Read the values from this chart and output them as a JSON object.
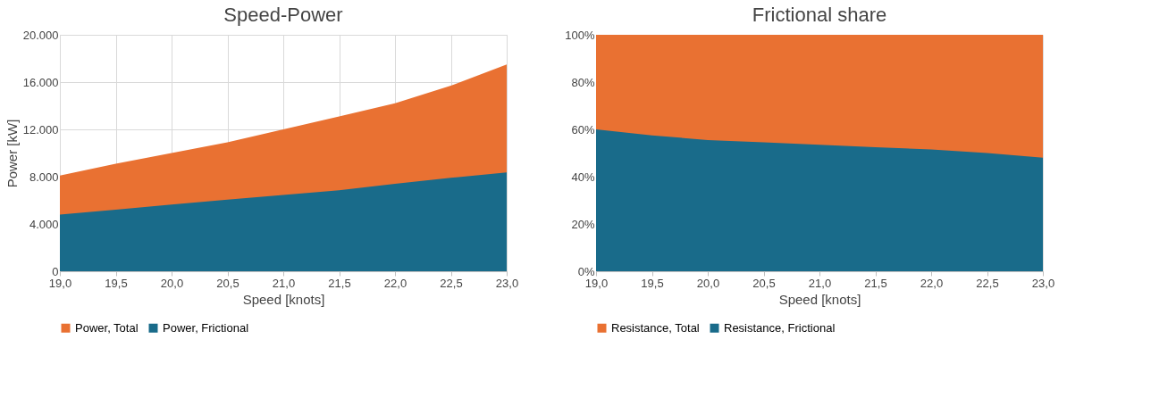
{
  "chart_data": [
    {
      "type": "area",
      "title": "Speed-Power",
      "xlabel": "Speed [knots]",
      "ylabel": "Power [kW]",
      "x": [
        19,
        19.5,
        20,
        20.5,
        21,
        21.5,
        22,
        22.5,
        23
      ],
      "series": [
        {
          "name": "Power, Total",
          "color": "#e97132",
          "values": [
            8100,
            9100,
            10000,
            10900,
            12000,
            13100,
            14200,
            15700,
            17500
          ]
        },
        {
          "name": "Power, Frictional",
          "color": "#196b8a",
          "values": [
            4800,
            5200,
            5650,
            6050,
            6450,
            6850,
            7400,
            7900,
            8350
          ]
        }
      ],
      "xlim": [
        19,
        23
      ],
      "xticks": [
        {
          "value": 19,
          "label": "19,0"
        },
        {
          "value": 19.5,
          "label": "19,5"
        },
        {
          "value": 20,
          "label": "20,0"
        },
        {
          "value": 20.5,
          "label": "20,5"
        },
        {
          "value": 21,
          "label": "21,0"
        },
        {
          "value": 21.5,
          "label": "21,5"
        },
        {
          "value": 22,
          "label": "22,0"
        },
        {
          "value": 22.5,
          "label": "22,5"
        },
        {
          "value": 23,
          "label": "23,0"
        }
      ],
      "ylim": [
        0,
        20000
      ],
      "yticks": [
        0,
        {
          "value": 4000,
          "label": "4.000"
        },
        {
          "value": 8000,
          "label": "8.000"
        },
        {
          "value": 12000,
          "label": "12.000"
        },
        {
          "value": 16000,
          "label": "16.000"
        },
        {
          "value": 20000,
          "label": "20.000"
        }
      ],
      "grid": true,
      "legend": "bottom"
    },
    {
      "type": "area",
      "title": "Frictional share",
      "xlabel": "Speed [knots]",
      "x": [
        19,
        19.5,
        20,
        20.5,
        21,
        21.5,
        22,
        22.5,
        23
      ],
      "series": [
        {
          "name": "Resistance, Total",
          "color": "#e97132",
          "values": [
            100,
            100,
            100,
            100,
            100,
            100,
            100,
            100,
            100
          ]
        },
        {
          "name": "Resistance, Frictional",
          "color": "#196b8a",
          "values": [
            60,
            57.5,
            55.5,
            54.5,
            53.5,
            52.5,
            51.5,
            50,
            48
          ]
        }
      ],
      "xlim": [
        19,
        23
      ],
      "xticks": [
        {
          "value": 19,
          "label": "19,0"
        },
        {
          "value": 19.5,
          "label": "19,5"
        },
        {
          "value": 20,
          "label": "20,0"
        },
        {
          "value": 20.5,
          "label": "20,5"
        },
        {
          "value": 21,
          "label": "21,0"
        },
        {
          "value": 21.5,
          "label": "21,5"
        },
        {
          "value": 22,
          "label": "22,0"
        },
        {
          "value": 22.5,
          "label": "22,5"
        },
        {
          "value": 23,
          "label": "23,0"
        }
      ],
      "ylim": [
        0,
        100
      ],
      "yticks": [
        {
          "value": 0,
          "label": "0%"
        },
        {
          "value": 20,
          "label": "20%"
        },
        {
          "value": 40,
          "label": "40%"
        },
        {
          "value": 60,
          "label": "60%"
        },
        {
          "value": 80,
          "label": "80%"
        },
        {
          "value": 100,
          "label": "100%"
        }
      ],
      "grid": false,
      "legend": "bottom"
    }
  ]
}
